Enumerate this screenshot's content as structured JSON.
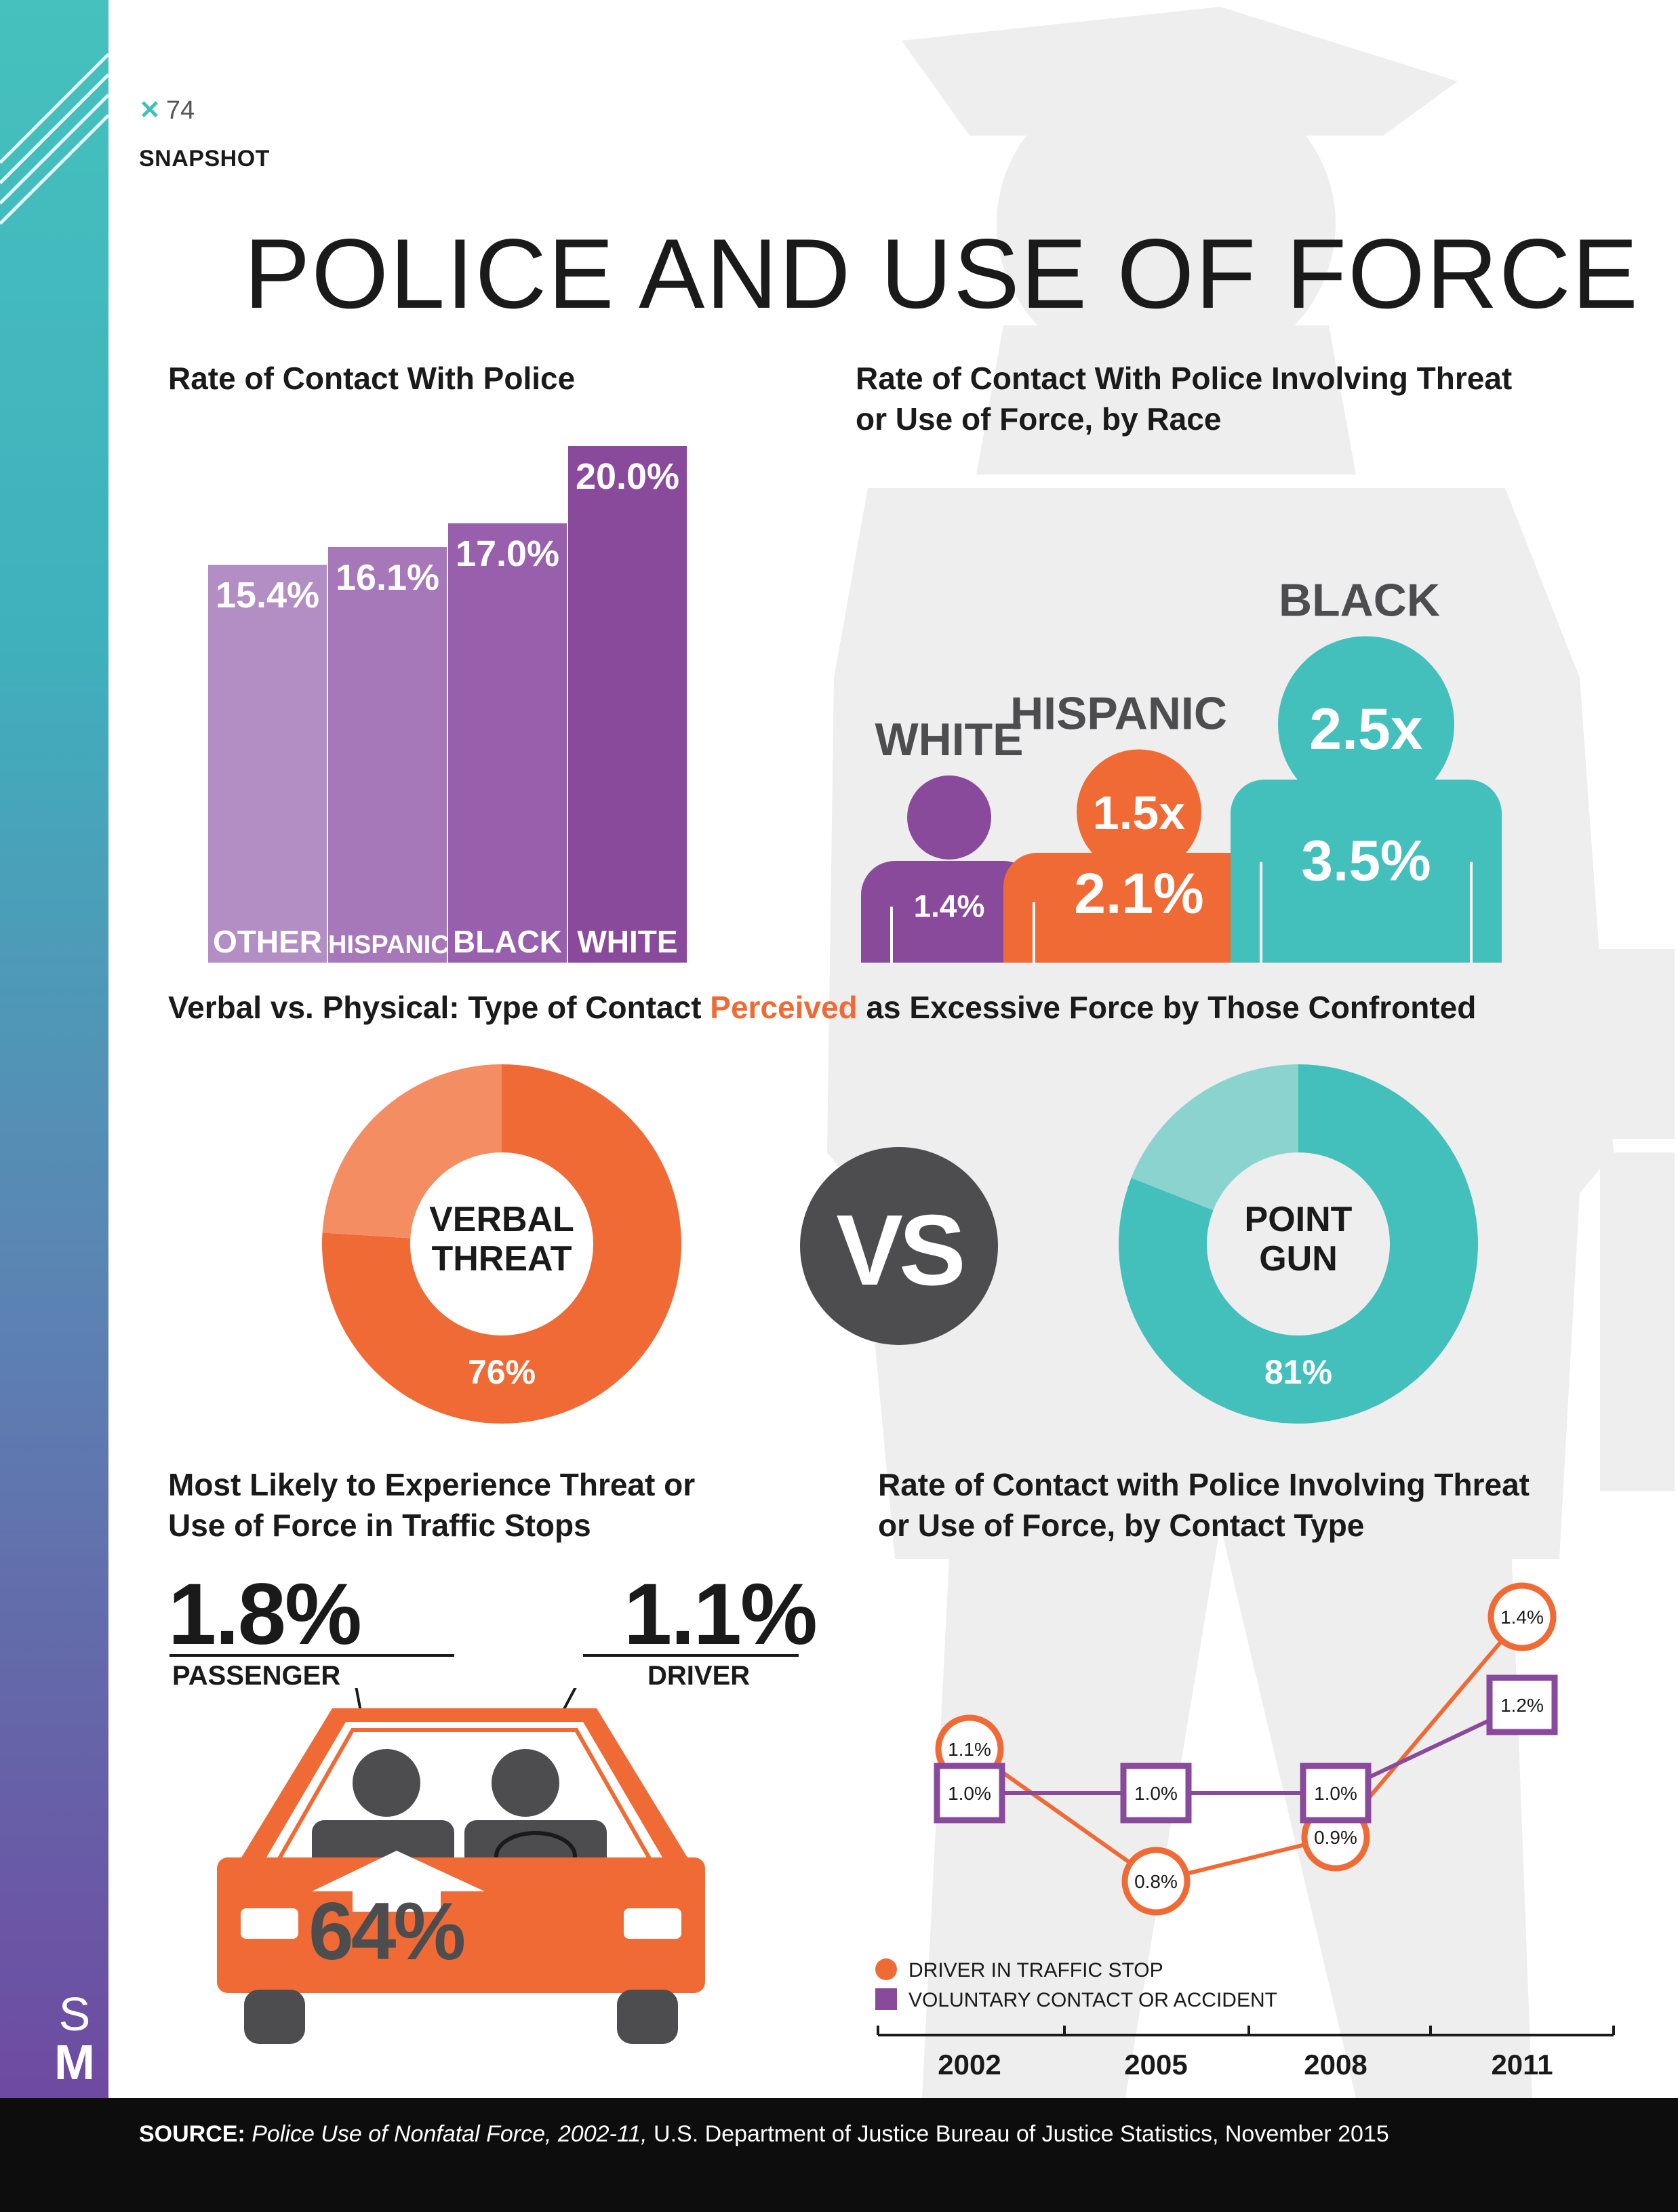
{
  "header": {
    "page_number": "74",
    "section": "SNAPSHOT",
    "title": "POLICE AND USE OF FORCE",
    "logo_letters": [
      "S",
      "M"
    ]
  },
  "colors": {
    "teal": "#44c0bc",
    "orange": "#f06a35",
    "purple": "#8a4a9c",
    "dark_gray": "#4d4d4f",
    "silhouette": "#eeeeee"
  },
  "contact_rate": {
    "title": "Rate of Contact With Police"
  },
  "threat_by_race": {
    "title_line1": "Rate of Contact With Police Involving Threat",
    "title_line2": "or Use of Force, by Race"
  },
  "verbal_vs_physical": {
    "title_before": "Verbal vs. Physical: Type of Contact ",
    "title_highlight": "Perceived",
    "title_after": " as Excessive Force by Those Confronted",
    "vs_label": "VS"
  },
  "traffic_stops": {
    "title_line1": "Most Likely to Experience Threat or",
    "title_line2": "Use of Force in Traffic Stops",
    "car_value": "64%"
  },
  "contact_type": {
    "title_line1": "Rate of Contact with Police Involving Threat",
    "title_line2": "or Use of Force, by Contact Type"
  },
  "chart_data": [
    {
      "type": "bar",
      "title": "Rate of Contact With Police",
      "categories": [
        "OTHER",
        "HISPANIC",
        "BLACK",
        "WHITE"
      ],
      "values": [
        15.4,
        16.1,
        17.0,
        20.0
      ],
      "value_labels": [
        "15.4%",
        "16.1%",
        "17.0%",
        "20.0%"
      ],
      "colors": [
        "#b38ec5",
        "#a677b9",
        "#985fad",
        "#8a4a9c"
      ]
    },
    {
      "type": "bar",
      "title": "Rate of Contact With Police Involving Threat or Use of Force, by Race",
      "categories": [
        "WHITE",
        "HISPANIC",
        "BLACK"
      ],
      "values": [
        1.4,
        2.1,
        3.5
      ],
      "value_labels": [
        "1.4%",
        "2.1%",
        "3.5%"
      ],
      "multipliers": [
        "",
        "1.5x",
        "2.5x"
      ],
      "colors": [
        "#8a4a9c",
        "#f06a35",
        "#44c0bc"
      ]
    },
    {
      "type": "pie",
      "title": "VERBAL THREAT",
      "label_line1": "VERBAL",
      "label_line2": "THREAT",
      "value": 76,
      "value_label": "76%",
      "colors": [
        "#f06a35",
        "#f58d63"
      ]
    },
    {
      "type": "pie",
      "title": "POINT GUN",
      "label_line1": "POINT",
      "label_line2": "GUN",
      "value": 81,
      "value_label": "81%",
      "colors": [
        "#44c0bc",
        "#8ad3cf"
      ]
    },
    {
      "type": "bar",
      "title": "Most Likely to Experience Threat or Use of Force in Traffic Stops",
      "categories": [
        "PASSENGER",
        "DRIVER"
      ],
      "values": [
        1.8,
        1.1
      ],
      "value_labels": [
        "1.8%",
        "1.1%"
      ]
    },
    {
      "type": "line",
      "title": "Rate of Contact with Police Involving Threat or Use of Force, by Contact Type",
      "x": [
        "2002",
        "2005",
        "2008",
        "2011"
      ],
      "series": [
        {
          "name": "DRIVER IN TRAFFIC STOP",
          "values": [
            1.1,
            0.8,
            0.9,
            1.4
          ],
          "labels": [
            "1.1%",
            "0.8%",
            "0.9%",
            "1.4%"
          ],
          "color": "#f06a35",
          "marker": "circle"
        },
        {
          "name": "VOLUNTARY CONTACT OR ACCIDENT",
          "values": [
            1.0,
            1.0,
            1.0,
            1.2
          ],
          "labels": [
            "1.0%",
            "1.0%",
            "1.0%",
            "1.2%"
          ],
          "color": "#8a4a9c",
          "marker": "square"
        }
      ],
      "ylim": [
        0.7,
        1.5
      ],
      "legend": "bottom-left"
    }
  ],
  "footer": {
    "source_label": "SOURCE:",
    "source_title": "Police Use of Nonfatal Force, 2002-11,",
    "source_rest": " U.S. Department of Justice Bureau of Justice Statistics, November 2015"
  }
}
